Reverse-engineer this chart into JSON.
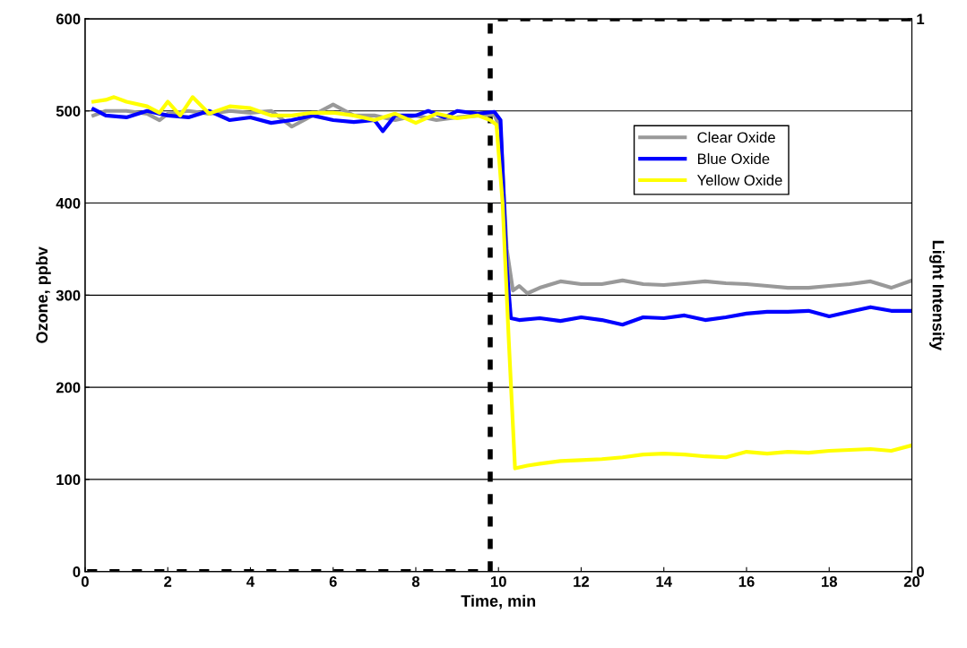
{
  "chart_data": {
    "type": "line",
    "xlabel": "Time, min",
    "ylabel": "Ozone, ppbv",
    "y2label": "Light Intensity",
    "xlim": [
      0,
      20
    ],
    "xticks": [
      0,
      2,
      4,
      6,
      8,
      10,
      12,
      14,
      16,
      18,
      20
    ],
    "ylim": [
      0,
      600
    ],
    "yticks": [
      0,
      100,
      200,
      300,
      400,
      500,
      600
    ],
    "y2lim": [
      0,
      1
    ],
    "y2ticks": [
      0,
      1
    ],
    "grid": "y",
    "legend": "top right",
    "marker": "none",
    "series": [
      {
        "name": "Clear Oxide",
        "color": "#999999",
        "x": [
          0.2,
          0.5,
          1,
          1.5,
          1.8,
          2,
          2.5,
          3,
          3.5,
          4,
          4.5,
          5,
          5.5,
          6,
          6.5,
          7,
          7.5,
          8,
          8.5,
          9,
          9.5,
          9.9,
          10.05,
          10.2,
          10.35,
          10.5,
          10.7,
          11,
          11.5,
          12,
          12.5,
          13,
          13.5,
          14,
          14.5,
          15,
          15.5,
          16,
          16.5,
          17,
          17.5,
          18,
          18.5,
          19,
          19.5,
          20
        ],
        "values": [
          495,
          500,
          500,
          497,
          490,
          497,
          500,
          497,
          500,
          498,
          500,
          483,
          495,
          507,
          495,
          495,
          490,
          495,
          490,
          493,
          495,
          496,
          480,
          350,
          305,
          310,
          302,
          308,
          315,
          312,
          312,
          316,
          312,
          311,
          313,
          315,
          313,
          312,
          310,
          308,
          308,
          310,
          312,
          315,
          308,
          316
        ]
      },
      {
        "name": "Blue Oxide",
        "color": "#0000ff",
        "x": [
          0.2,
          0.5,
          1,
          1.5,
          2,
          2.5,
          3,
          3.5,
          4,
          4.5,
          5,
          5.5,
          6,
          6.5,
          7,
          7.2,
          7.5,
          8,
          8.3,
          8.7,
          9,
          9.5,
          9.9,
          10.05,
          10.2,
          10.3,
          10.5,
          11,
          11.5,
          12,
          12.5,
          13,
          13.5,
          14,
          14.5,
          15,
          15.5,
          16,
          16.5,
          17,
          17.5,
          18,
          18.5,
          19,
          19.5,
          20
        ],
        "values": [
          502,
          495,
          493,
          500,
          495,
          493,
          500,
          490,
          493,
          487,
          490,
          495,
          490,
          488,
          490,
          478,
          495,
          495,
          500,
          493,
          500,
          497,
          499,
          490,
          330,
          275,
          273,
          275,
          272,
          276,
          273,
          268,
          276,
          275,
          278,
          273,
          276,
          280,
          282,
          282,
          283,
          277,
          282,
          287,
          283,
          283
        ]
      },
      {
        "name": "Yellow Oxide",
        "color": "#ffff00",
        "x": [
          0.2,
          0.5,
          0.7,
          1,
          1.5,
          1.8,
          2,
          2.3,
          2.6,
          3,
          3.5,
          4,
          4.5,
          5,
          5.5,
          6,
          6.5,
          7,
          7.5,
          8,
          8.5,
          9,
          9.5,
          9.8,
          9.95,
          10.1,
          10.25,
          10.4,
          10.7,
          11,
          11.5,
          12,
          12.5,
          13,
          13.5,
          14,
          14.5,
          15,
          15.5,
          16,
          16.5,
          17,
          17.5,
          18,
          18.5,
          19,
          19.5,
          20
        ],
        "values": [
          510,
          512,
          515,
          510,
          505,
          498,
          510,
          495,
          515,
          497,
          505,
          503,
          495,
          495,
          498,
          498,
          495,
          490,
          497,
          487,
          497,
          492,
          495,
          490,
          485,
          400,
          250,
          112,
          115,
          117,
          120,
          121,
          122,
          124,
          127,
          128,
          127,
          125,
          124,
          130,
          128,
          130,
          129,
          131,
          132,
          133,
          131,
          137
        ]
      },
      {
        "color": "#000000",
        "axis": "y2",
        "line_style": "dashed",
        "x": [
          0.05,
          9.8,
          9.8,
          20
        ],
        "values": [
          0,
          0,
          1,
          1
        ]
      }
    ]
  }
}
